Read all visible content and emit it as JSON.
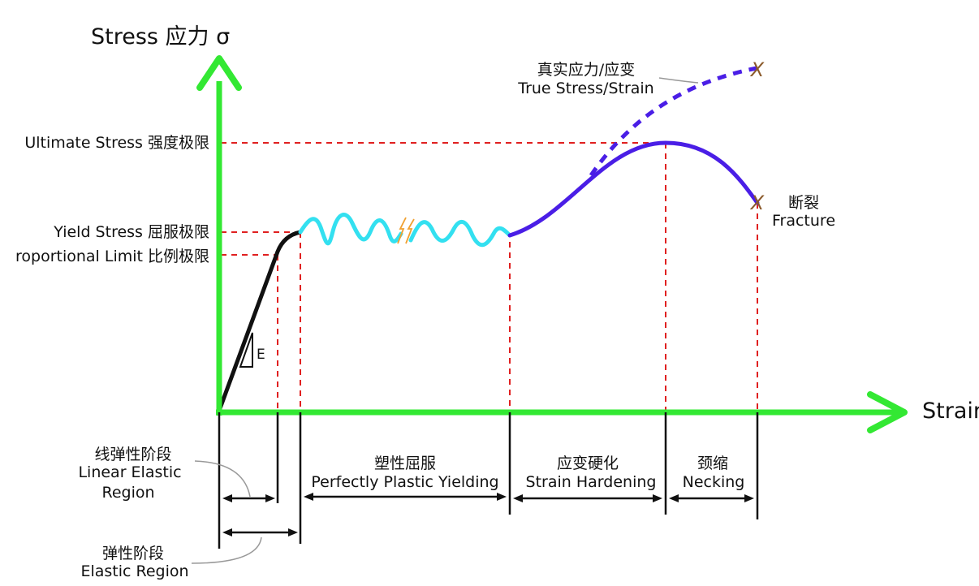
{
  "axes": {
    "y_label": "Stress 应力 σ",
    "x_label": "Strain",
    "color": "#33e833"
  },
  "stress_levels": [
    {
      "id": "ultimate",
      "label": "Ultimate Stress 强度极限"
    },
    {
      "id": "yield",
      "label": "Yield Stress 屈服极限"
    },
    {
      "id": "proportional",
      "label": "roportional Limit 比例极限"
    }
  ],
  "curve": {
    "modulus_label": "E",
    "elastic_color": "#111111",
    "yielding_color": "#33e0f0",
    "hardening_color": "#4a1ee6",
    "true_curve_color": "#4a1ee6",
    "guide_color": "#e02020",
    "fracture_marker_color": "#8b5a2b"
  },
  "annotations": {
    "true_stress_zh": "真实应力/应变",
    "true_stress_en": "True Stress/Strain",
    "fracture_zh": "断裂",
    "fracture_en": "Fracture",
    "fracture_marker": "X"
  },
  "regions": [
    {
      "id": "linear-elastic",
      "zh": "线弹性阶段",
      "en_line1": "Linear Elastic",
      "en_line2": "Region"
    },
    {
      "id": "yielding",
      "zh": "塑性屈服",
      "en": "Perfectly Plastic Yielding"
    },
    {
      "id": "hardening",
      "zh": "应变硬化",
      "en": "Strain Hardening"
    },
    {
      "id": "necking",
      "zh": "颈缩",
      "en": "Necking"
    },
    {
      "id": "elastic",
      "zh": "弹性阶段",
      "en": "Elastic Region"
    }
  ]
}
